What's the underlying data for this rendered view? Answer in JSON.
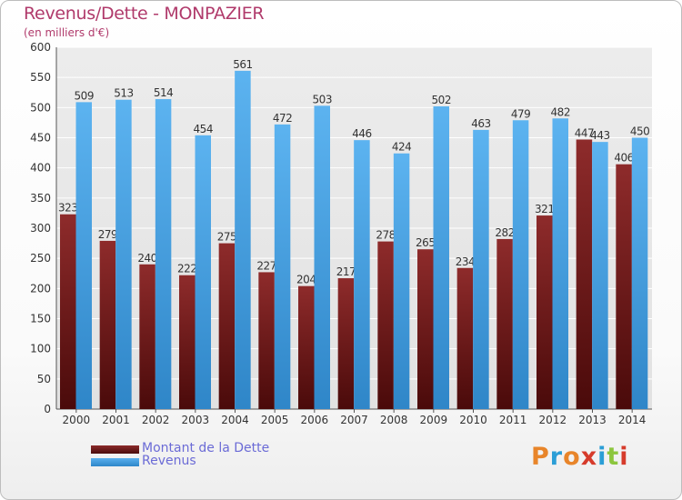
{
  "header": {
    "title": "Revenus/Dette - MONPAZIER",
    "subtitle": "(en milliers d'€)"
  },
  "legend": [
    {
      "label": "Montant de la Dette",
      "color": "#7a1e1e"
    },
    {
      "label": "Revenus",
      "color": "#4aa3e6"
    }
  ],
  "logo": {
    "text": "Proxiti",
    "colors": [
      "#e8852a",
      "#2b9ed6",
      "#e8852a",
      "#d63b2b",
      "#2b9ed6",
      "#8cc63e",
      "#d63b2b"
    ]
  },
  "colors": {
    "dette": "#7a1e1e",
    "revenus": "#4aa3e6"
  },
  "chart_data": {
    "type": "bar",
    "categories": [
      "2000",
      "2001",
      "2002",
      "2003",
      "2004",
      "2005",
      "2006",
      "2007",
      "2008",
      "2009",
      "2010",
      "2011",
      "2012",
      "2013",
      "2014"
    ],
    "series": [
      {
        "name": "Montant de la Dette",
        "values": [
          323,
          279,
          240,
          222,
          275,
          227,
          204,
          217,
          278,
          265,
          234,
          282,
          321,
          447,
          406
        ]
      },
      {
        "name": "Revenus",
        "values": [
          509,
          513,
          514,
          454,
          561,
          472,
          503,
          446,
          424,
          502,
          463,
          479,
          482,
          443,
          450
        ]
      }
    ],
    "ylim": [
      0,
      600
    ],
    "yticks": [
      0,
      50,
      100,
      150,
      200,
      250,
      300,
      350,
      400,
      450,
      500,
      550,
      600
    ],
    "grid": true
  }
}
